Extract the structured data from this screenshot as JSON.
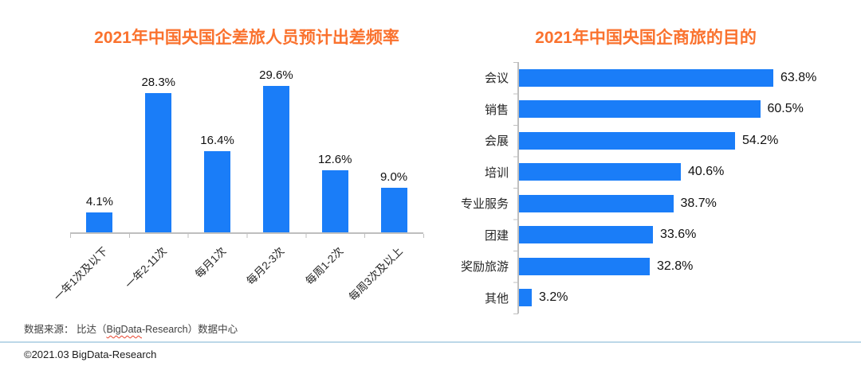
{
  "colors": {
    "bar_blue": "#1A7DF8",
    "title_orange": "#FA722E",
    "axis_gray": "#BFBFBF",
    "divider_blue": "#BCD8E8"
  },
  "chart_data": [
    {
      "type": "bar",
      "orientation": "vertical",
      "title": "2021年中国央国企差旅人员预计出差频率",
      "categories": [
        "一年1次及以下",
        "一年2-11次",
        "每月1次",
        "每月2-3次",
        "每周1-2次",
        "每周3次及以上"
      ],
      "values": [
        4.1,
        28.3,
        16.4,
        29.6,
        12.6,
        9.0
      ],
      "value_labels": [
        "4.1%",
        "28.3%",
        "16.4%",
        "29.6%",
        "12.6%",
        "9.0%"
      ],
      "ylim": [
        0,
        30.5
      ],
      "grid": false,
      "legend": "none",
      "bar_color": "#1A7DF8"
    },
    {
      "type": "bar",
      "orientation": "horizontal",
      "title": "2021年中国央国企商旅的目的",
      "categories": [
        "会议",
        "销售",
        "会展",
        "培训",
        "专业服务",
        "团建",
        "奖励旅游",
        "其他"
      ],
      "values": [
        63.8,
        60.5,
        54.2,
        40.6,
        38.7,
        33.6,
        32.8,
        3.2
      ],
      "value_labels": [
        "63.8%",
        "60.5%",
        "54.2%",
        "40.6%",
        "38.7%",
        "33.6%",
        "32.8%",
        "3.2%"
      ],
      "xlim": [
        0,
        70
      ],
      "grid": false,
      "legend": "none",
      "bar_color": "#1A7DF8"
    }
  ],
  "footer": {
    "source_prefix": "数据来源： 比达（",
    "source_misspelled": "BigData",
    "source_suffix": "-Research）数据中心",
    "copyright": "©2021.03 BigData-Research"
  }
}
